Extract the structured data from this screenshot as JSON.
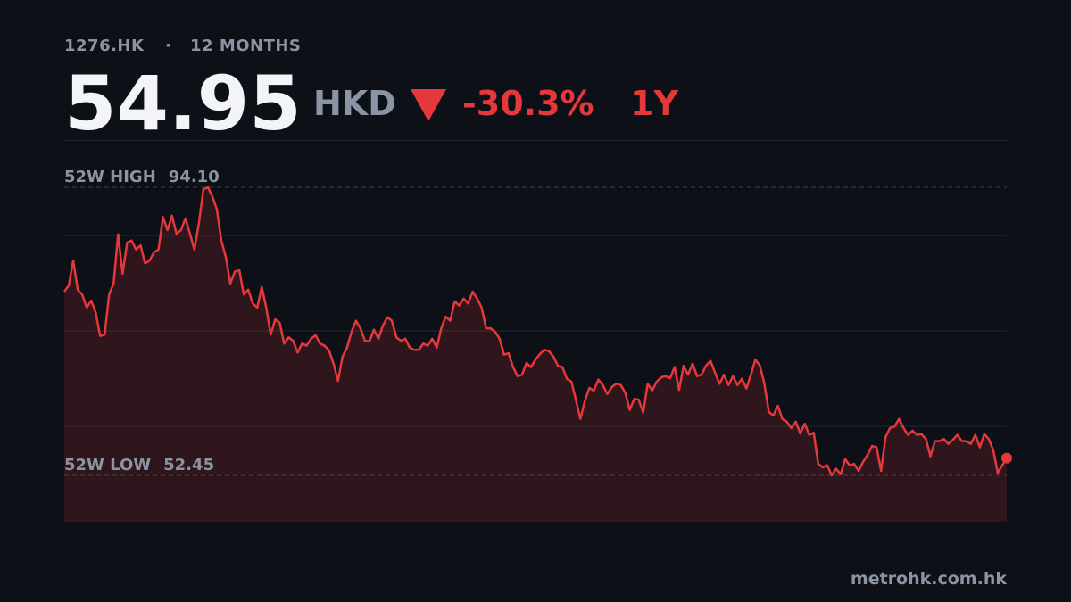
{
  "header": {
    "ticker": "1276.HK",
    "separator": "·",
    "period": "12 MONTHS",
    "price": "54.95",
    "currency": "HKD",
    "change": "-30.3%",
    "range": "1Y"
  },
  "chart_data": {
    "type": "area",
    "color": "#e5383b",
    "values": [
      79.0,
      79.9,
      83.5,
      79.3,
      78.6,
      76.7,
      77.7,
      76.0,
      72.6,
      72.8,
      78.6,
      80.2,
      87.3,
      81.6,
      86.1,
      86.4,
      85.1,
      85.7,
      83.1,
      83.5,
      84.7,
      85.1,
      89.8,
      87.9,
      90.0,
      87.4,
      87.9,
      89.6,
      87.4,
      85.1,
      88.9,
      93.8,
      94.1,
      92.8,
      90.9,
      86.4,
      84.0,
      80.2,
      81.9,
      82.1,
      78.6,
      79.3,
      77.3,
      76.7,
      79.7,
      76.7,
      72.8,
      75.0,
      74.5,
      71.5,
      72.4,
      71.9,
      70.2,
      71.5,
      71.2,
      72.2,
      72.7,
      71.5,
      71.2,
      70.5,
      68.6,
      66.1,
      69.6,
      70.9,
      73.2,
      74.8,
      73.7,
      71.9,
      71.8,
      73.5,
      72.2,
      74.1,
      75.3,
      74.8,
      72.4,
      71.9,
      72.2,
      70.9,
      70.6,
      70.6,
      71.5,
      71.2,
      72.2,
      70.9,
      73.7,
      75.4,
      74.8,
      77.6,
      77.0,
      78.0,
      77.3,
      79.0,
      78.0,
      76.7,
      73.7,
      73.7,
      73.2,
      72.2,
      69.9,
      70.1,
      68.1,
      66.8,
      67.0,
      68.7,
      68.1,
      69.2,
      70.0,
      70.6,
      70.4,
      69.6,
      68.3,
      68.1,
      66.4,
      66.0,
      63.4,
      60.6,
      63.2,
      65.1,
      64.7,
      66.3,
      65.5,
      64.2,
      65.2,
      65.7,
      65.5,
      64.4,
      61.9,
      63.5,
      63.4,
      61.5,
      65.7,
      64.7,
      66.0,
      66.6,
      66.8,
      66.5,
      68.1,
      64.8,
      68.3,
      67.0,
      68.6,
      66.8,
      67.0,
      68.3,
      69.0,
      67.3,
      65.7,
      67.0,
      65.5,
      66.8,
      65.5,
      66.4,
      65.0,
      67.0,
      69.2,
      68.3,
      65.7,
      61.6,
      61.1,
      62.5,
      60.6,
      60.2,
      59.3,
      60.2,
      58.5,
      59.9,
      58.3,
      58.6,
      54.1,
      53.6,
      53.9,
      52.45,
      53.4,
      52.6,
      54.8,
      53.9,
      54.1,
      53.1,
      54.4,
      55.4,
      56.7,
      56.5,
      53.1,
      58.0,
      59.3,
      59.5,
      60.6,
      59.3,
      58.3,
      58.9,
      58.3,
      58.4,
      57.7,
      55.2,
      57.4,
      57.4,
      57.7,
      57.0,
      57.6,
      58.3,
      57.4,
      57.4,
      57.0,
      58.3,
      56.5,
      58.4,
      57.7,
      56.1,
      52.8,
      53.9,
      54.95
    ],
    "ylim": [
      45.74,
      100.93
    ],
    "yticks": [
      59.54,
      73.34,
      87.13
    ],
    "grid": true,
    "high_label": "52W HIGH",
    "high": {
      "value": 94.1,
      "label": "94.10"
    },
    "low_label": "52W LOW",
    "low": {
      "value": 52.45,
      "label": "52.45"
    }
  },
  "footer": {
    "source": "metrohk.com.hk"
  }
}
